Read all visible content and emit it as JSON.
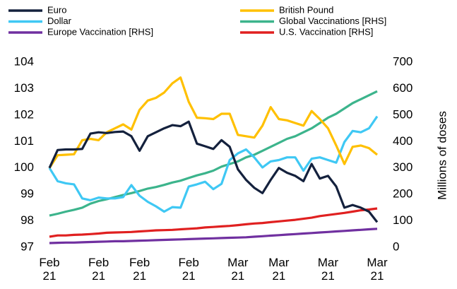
{
  "chart_data": {
    "type": "line",
    "categories": [
      "Feb 21",
      null,
      null,
      null,
      null,
      null,
      "Feb 21",
      null,
      null,
      null,
      null,
      "Feb 21",
      null,
      null,
      null,
      null,
      null,
      "Feb 21",
      null,
      null,
      null,
      null,
      null,
      "Mar 21",
      null,
      null,
      null,
      null,
      "Mar 21",
      null,
      null,
      null,
      null,
      null,
      "Mar 21",
      null,
      null,
      null,
      null,
      null,
      "Mar 21"
    ],
    "ylim": [
      97,
      104
    ],
    "yticks": [
      97,
      98,
      99,
      100,
      101,
      102,
      103,
      104
    ],
    "y2lim": [
      0,
      700
    ],
    "y2ticks": [
      0,
      100,
      200,
      300,
      400,
      500,
      600,
      700
    ],
    "y2label": "Millions of doses",
    "series": [
      {
        "name": "Euro",
        "color": "#14213d",
        "values": [
          100.0,
          100.68,
          100.7,
          100.7,
          100.72,
          101.3,
          101.35,
          101.32,
          101.36,
          101.38,
          101.2,
          100.65,
          101.2,
          101.35,
          101.5,
          101.62,
          101.58,
          101.75,
          100.92,
          100.82,
          100.72,
          101.05,
          100.8,
          99.95,
          99.55,
          99.25,
          99.05,
          99.55,
          100.0,
          99.82,
          99.7,
          99.5,
          100.15,
          99.6,
          99.7,
          99.3,
          98.5,
          98.6,
          98.5,
          98.35,
          97.95
        ]
      },
      {
        "name": "British Pound",
        "color": "#ffc000",
        "values": [
          100.0,
          100.48,
          100.5,
          100.52,
          101.05,
          101.1,
          101.05,
          101.35,
          101.5,
          101.65,
          101.45,
          102.2,
          102.55,
          102.65,
          102.85,
          103.2,
          103.42,
          102.5,
          101.9,
          101.88,
          101.85,
          102.05,
          102.05,
          101.25,
          101.2,
          101.15,
          101.6,
          102.3,
          101.85,
          101.8,
          101.7,
          101.6,
          102.15,
          101.85,
          101.5,
          100.85,
          100.15,
          100.8,
          100.85,
          100.75,
          100.5
        ]
      },
      {
        "name": "Dollar",
        "color": "#3fc8f4",
        "values": [
          100.0,
          99.5,
          99.42,
          99.38,
          98.85,
          98.78,
          98.88,
          98.85,
          98.85,
          98.9,
          99.35,
          98.95,
          98.72,
          98.55,
          98.35,
          98.52,
          98.5,
          99.3,
          99.38,
          99.48,
          99.2,
          99.4,
          100.3,
          100.55,
          100.7,
          100.4,
          100.02,
          100.25,
          100.3,
          100.4,
          100.4,
          99.9,
          100.35,
          100.4,
          100.3,
          100.2,
          100.98,
          101.4,
          101.35,
          101.5,
          101.95
        ]
      },
      {
        "name": "Global Vaccinations [RHS]",
        "color": "#3cb48c",
        "axis": "y2",
        "values": [
          120,
          127,
          135,
          142,
          150,
          165,
          175,
          182,
          190,
          198,
          205,
          213,
          222,
          228,
          236,
          245,
          252,
          262,
          272,
          280,
          290,
          305,
          315,
          325,
          340,
          350,
          365,
          380,
          395,
          410,
          420,
          435,
          450,
          470,
          490,
          505,
          525,
          545,
          560,
          575,
          590
        ]
      },
      {
        "name": "Europe Vaccination [RHS]",
        "color": "#7030a0",
        "axis": "y2",
        "values": [
          16,
          17,
          18,
          18,
          19,
          20,
          21,
          22,
          23,
          23,
          24,
          25,
          26,
          27,
          28,
          29,
          30,
          31,
          32,
          33,
          34,
          35,
          36,
          37,
          38,
          40,
          42,
          44,
          46,
          48,
          50,
          52,
          54,
          56,
          58,
          60,
          62,
          64,
          66,
          68,
          70
        ]
      },
      {
        "name": "U.S. Vaccination [RHS]",
        "color": "#e02020",
        "axis": "y2",
        "values": [
          40,
          45,
          45,
          47,
          48,
          50,
          52,
          55,
          56,
          57,
          58,
          60,
          62,
          64,
          65,
          66,
          68,
          70,
          72,
          75,
          77,
          79,
          81,
          84,
          87,
          90,
          92,
          95,
          98,
          101,
          104,
          108,
          112,
          118,
          122,
          126,
          130,
          135,
          140,
          143,
          147
        ]
      }
    ]
  }
}
